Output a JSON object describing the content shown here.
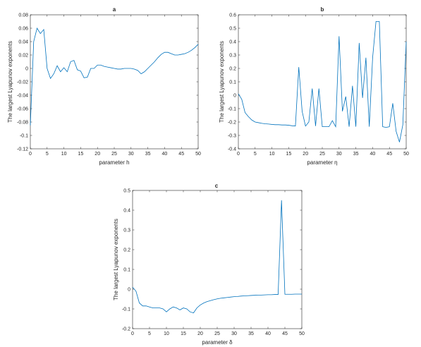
{
  "line_color": "#0072bd",
  "chart_data": [
    {
      "type": "line",
      "title": "a",
      "xlabel": "parameter h",
      "ylabel": "The largest Lyapunov exponents",
      "xlim": [
        0,
        50
      ],
      "ylim": [
        -0.12,
        0.08
      ],
      "xticks": [
        0,
        5,
        10,
        15,
        20,
        25,
        30,
        35,
        40,
        45,
        50
      ],
      "yticks": [
        -0.12,
        -0.1,
        -0.08,
        -0.06,
        -0.04,
        -0.02,
        0,
        0.02,
        0.04,
        0.06,
        0.08
      ],
      "ytick_labels": [
        "-0.12",
        "-0.1",
        "-0.08",
        "-0.06",
        "-0.04",
        "-0.02",
        "0",
        "0.02",
        "0.04",
        "0.06",
        "0.08"
      ],
      "series": [
        {
          "x": [
            0,
            1,
            2,
            3,
            4,
            5,
            6,
            7,
            8,
            9,
            10,
            11,
            12,
            13,
            14,
            15,
            16,
            17,
            18,
            19,
            20,
            21,
            22,
            23,
            24,
            25,
            26,
            27,
            28,
            29,
            30,
            31,
            32,
            33,
            34,
            35,
            36,
            37,
            38,
            39,
            40,
            41,
            42,
            43,
            44,
            45,
            46,
            47,
            48,
            49,
            50
          ],
          "y": [
            -0.085,
            0.04,
            0.06,
            0.052,
            0.058,
            0.0,
            -0.015,
            -0.008,
            0.004,
            -0.005,
            0.001,
            -0.005,
            0.01,
            0.012,
            -0.002,
            -0.004,
            -0.014,
            -0.013,
            0.0,
            0.0,
            0.005,
            0.005,
            0.003,
            0.002,
            0.001,
            0.0,
            -0.001,
            -0.001,
            0.0,
            0.0,
            0.0,
            -0.001,
            -0.003,
            -0.008,
            -0.005,
            0.0,
            0.005,
            0.01,
            0.016,
            0.021,
            0.024,
            0.024,
            0.022,
            0.02,
            0.02,
            0.021,
            0.022,
            0.024,
            0.027,
            0.031,
            0.036
          ]
        }
      ]
    },
    {
      "type": "line",
      "title": "b",
      "xlabel": "parameter η",
      "ylabel": "The largest Lyapunov exponents",
      "xlim": [
        0,
        50
      ],
      "ylim": [
        -0.4,
        0.6
      ],
      "xticks": [
        0,
        5,
        10,
        15,
        20,
        25,
        30,
        35,
        40,
        45,
        50
      ],
      "yticks": [
        -0.4,
        -0.3,
        -0.2,
        -0.1,
        0,
        0.1,
        0.2,
        0.3,
        0.4,
        0.5,
        0.6
      ],
      "ytick_labels": [
        "-0.4",
        "-0.3",
        "-0.2",
        "-0.1",
        "0",
        "0.1",
        "0.2",
        "0.3",
        "0.4",
        "0.5",
        "0.6"
      ],
      "series": [
        {
          "x": [
            0,
            1,
            2,
            3,
            4,
            5,
            6,
            7,
            8,
            9,
            10,
            11,
            12,
            13,
            14,
            15,
            16,
            17,
            18,
            19,
            20,
            21,
            22,
            23,
            24,
            25,
            26,
            27,
            28,
            29,
            30,
            31,
            32,
            33,
            34,
            35,
            36,
            37,
            38,
            39,
            40,
            41,
            42,
            43,
            44,
            45,
            46,
            47,
            48,
            49,
            50
          ],
          "y": [
            0.01,
            -0.03,
            -0.13,
            -0.16,
            -0.185,
            -0.2,
            -0.205,
            -0.21,
            -0.213,
            -0.215,
            -0.218,
            -0.22,
            -0.22,
            -0.222,
            -0.222,
            -0.224,
            -0.228,
            -0.23,
            0.21,
            -0.12,
            -0.23,
            -0.2,
            0.05,
            -0.23,
            0.05,
            -0.235,
            -0.235,
            -0.235,
            -0.19,
            -0.235,
            0.44,
            -0.12,
            -0.01,
            -0.235,
            0.07,
            -0.235,
            0.39,
            -0.02,
            0.28,
            -0.235,
            0.28,
            0.55,
            0.55,
            -0.235,
            -0.24,
            -0.235,
            -0.06,
            -0.27,
            -0.35,
            -0.22,
            0.4
          ]
        }
      ]
    },
    {
      "type": "line",
      "title": "c",
      "xlabel": "parameter δ",
      "ylabel": "The largest Lyapunov exponents",
      "xlim": [
        0,
        50
      ],
      "ylim": [
        -0.2,
        0.5
      ],
      "xticks": [
        0,
        5,
        10,
        15,
        20,
        25,
        30,
        35,
        40,
        45,
        50
      ],
      "yticks": [
        -0.2,
        -0.1,
        0,
        0.1,
        0.2,
        0.3,
        0.4,
        0.5
      ],
      "ytick_labels": [
        "-0.2",
        "-0.1",
        "0",
        "0.1",
        "0.2",
        "0.3",
        "0.4",
        "0.5"
      ],
      "series": [
        {
          "x": [
            0,
            1,
            2,
            3,
            4,
            5,
            6,
            7,
            8,
            9,
            10,
            11,
            12,
            13,
            14,
            15,
            16,
            17,
            18,
            19,
            20,
            21,
            22,
            23,
            24,
            25,
            26,
            27,
            28,
            29,
            30,
            31,
            32,
            33,
            34,
            35,
            36,
            37,
            38,
            39,
            40,
            41,
            42,
            43,
            44,
            45,
            46,
            47,
            48,
            49,
            50
          ],
          "y": [
            0.01,
            -0.01,
            -0.07,
            -0.085,
            -0.085,
            -0.09,
            -0.095,
            -0.095,
            -0.095,
            -0.1,
            -0.115,
            -0.1,
            -0.09,
            -0.095,
            -0.105,
            -0.095,
            -0.1,
            -0.115,
            -0.12,
            -0.095,
            -0.08,
            -0.07,
            -0.063,
            -0.058,
            -0.053,
            -0.049,
            -0.046,
            -0.044,
            -0.042,
            -0.04,
            -0.038,
            -0.037,
            -0.035,
            -0.034,
            -0.033,
            -0.032,
            -0.031,
            -0.03,
            -0.03,
            -0.029,
            -0.028,
            -0.028,
            -0.027,
            -0.027,
            0.45,
            -0.026,
            -0.026,
            -0.026,
            -0.025,
            -0.025,
            -0.025
          ]
        }
      ]
    }
  ]
}
